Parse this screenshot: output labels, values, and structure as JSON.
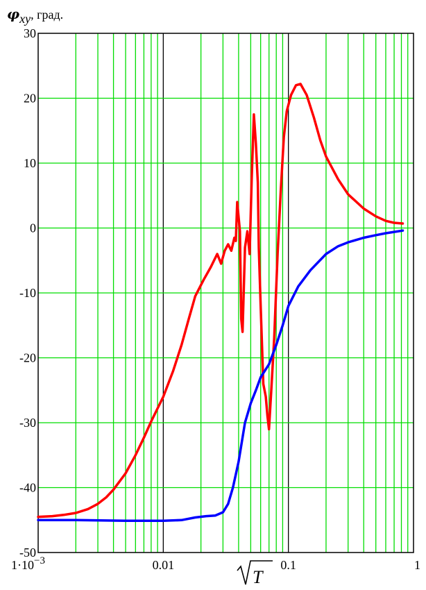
{
  "chart_data": {
    "type": "line",
    "title": "",
    "ylabel": {
      "symbol": "φ",
      "subscript": "xy",
      "unit": ", град."
    },
    "xlabel": "√T",
    "x_scale": "log",
    "xlim": [
      0.001,
      1
    ],
    "ylim": [
      -50,
      30
    ],
    "grid": true,
    "x_tick_labels": [
      {
        "value": 0.001,
        "label": "1·10",
        "exp": "−3"
      },
      {
        "value": 0.01,
        "label": "0.01"
      },
      {
        "value": 0.1,
        "label": "0.1"
      },
      {
        "value": 1,
        "label": "1"
      }
    ],
    "y_ticks": [
      30,
      20,
      10,
      0,
      -10,
      -20,
      -30,
      -40,
      -50
    ],
    "y_tick_labels": [
      "30",
      "20",
      "10",
      "0",
      "-10",
      "-20",
      "-30",
      "-40",
      "-50"
    ],
    "colors": {
      "grid": "#00dd00",
      "decade_grid": "#000000",
      "series_red": "#ff0000",
      "series_blue": "#0000ff"
    },
    "series": [
      {
        "color": "#ff0000",
        "points": [
          [
            0.001,
            -44.5
          ],
          [
            0.0013,
            -44.4
          ],
          [
            0.0016,
            -44.2
          ],
          [
            0.002,
            -43.9
          ],
          [
            0.0025,
            -43.3
          ],
          [
            0.003,
            -42.5
          ],
          [
            0.0035,
            -41.5
          ],
          [
            0.004,
            -40.3
          ],
          [
            0.005,
            -37.8
          ],
          [
            0.006,
            -35.0
          ],
          [
            0.007,
            -32.3
          ],
          [
            0.008,
            -29.8
          ],
          [
            0.009,
            -27.8
          ],
          [
            0.01,
            -26.0
          ],
          [
            0.012,
            -22.0
          ],
          [
            0.014,
            -18.0
          ],
          [
            0.016,
            -14.0
          ],
          [
            0.018,
            -10.5
          ],
          [
            0.021,
            -8.0
          ],
          [
            0.024,
            -6.0
          ],
          [
            0.027,
            -4.0
          ],
          [
            0.029,
            -5.5
          ],
          [
            0.031,
            -3.5
          ],
          [
            0.033,
            -2.5
          ],
          [
            0.035,
            -3.5
          ],
          [
            0.037,
            -1.5
          ],
          [
            0.038,
            -2.0
          ],
          [
            0.039,
            4.0
          ],
          [
            0.041,
            -0.5
          ],
          [
            0.042,
            -14.0
          ],
          [
            0.043,
            -16.0
          ],
          [
            0.045,
            -3.0
          ],
          [
            0.047,
            -0.5
          ],
          [
            0.049,
            -4.0
          ],
          [
            0.051,
            8.0
          ],
          [
            0.053,
            17.5
          ],
          [
            0.055,
            13.0
          ],
          [
            0.057,
            7.0
          ],
          [
            0.058,
            -3.0
          ],
          [
            0.06,
            -12.0
          ],
          [
            0.063,
            -24.0
          ],
          [
            0.066,
            -26.0
          ],
          [
            0.068,
            -29.0
          ],
          [
            0.07,
            -31.0
          ],
          [
            0.073,
            -25.0
          ],
          [
            0.077,
            -17.0
          ],
          [
            0.082,
            -4.0
          ],
          [
            0.087,
            6.0
          ],
          [
            0.092,
            14.0
          ],
          [
            0.097,
            18.0
          ],
          [
            0.105,
            20.5
          ],
          [
            0.115,
            22.0
          ],
          [
            0.125,
            22.2
          ],
          [
            0.14,
            20.5
          ],
          [
            0.16,
            17.0
          ],
          [
            0.18,
            13.5
          ],
          [
            0.2,
            11.0
          ],
          [
            0.25,
            7.5
          ],
          [
            0.3,
            5.2
          ],
          [
            0.4,
            3.0
          ],
          [
            0.5,
            1.8
          ],
          [
            0.6,
            1.1
          ],
          [
            0.7,
            0.8
          ],
          [
            0.82,
            0.7
          ]
        ]
      },
      {
        "color": "#0000ff",
        "points": [
          [
            0.001,
            -45.0
          ],
          [
            0.002,
            -45.0
          ],
          [
            0.005,
            -45.1
          ],
          [
            0.01,
            -45.1
          ],
          [
            0.014,
            -45.0
          ],
          [
            0.018,
            -44.6
          ],
          [
            0.022,
            -44.4
          ],
          [
            0.026,
            -44.3
          ],
          [
            0.03,
            -43.8
          ],
          [
            0.033,
            -42.5
          ],
          [
            0.036,
            -40.0
          ],
          [
            0.04,
            -36.0
          ],
          [
            0.045,
            -30.0
          ],
          [
            0.05,
            -27.0
          ],
          [
            0.055,
            -25.0
          ],
          [
            0.06,
            -23.0
          ],
          [
            0.07,
            -21.0
          ],
          [
            0.08,
            -18.0
          ],
          [
            0.09,
            -15.0
          ],
          [
            0.1,
            -12.0
          ],
          [
            0.12,
            -9.0
          ],
          [
            0.15,
            -6.5
          ],
          [
            0.2,
            -4.0
          ],
          [
            0.25,
            -2.8
          ],
          [
            0.3,
            -2.2
          ],
          [
            0.4,
            -1.5
          ],
          [
            0.5,
            -1.1
          ],
          [
            0.6,
            -0.8
          ],
          [
            0.7,
            -0.6
          ],
          [
            0.82,
            -0.4
          ]
        ]
      }
    ]
  }
}
